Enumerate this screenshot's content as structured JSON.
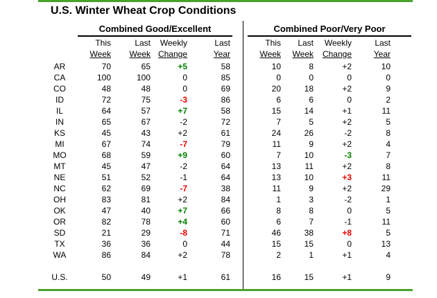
{
  "title": "U.S. Winter Wheat Crop Conditions",
  "colors": {
    "accent_bar_green": "#4aa02c",
    "positive_change_green": "#008000",
    "negative_change_red": "#f00000",
    "divider_black": "#000000"
  },
  "table": {
    "group_headers": {
      "good_excellent": "Combined Good/Excellent",
      "poor_very_poor": "Combined Poor/Very Poor"
    },
    "column_headers_line1": [
      "This",
      "Last",
      "Weekly",
      "Last",
      "This",
      "Last",
      "Weekly",
      "Last"
    ],
    "column_headers_line2": [
      "Week",
      "Week",
      "Change",
      "Year",
      "Week",
      "Week",
      "Change",
      "Year"
    ],
    "rows": [
      {
        "state": "AR",
        "cells": [
          "70",
          "65",
          "+5",
          "58",
          "10",
          "8",
          "+2",
          "10"
        ],
        "chg_colors": [
          "green",
          ""
        ]
      },
      {
        "state": "CA",
        "cells": [
          "100",
          "100",
          "0",
          "85",
          "0",
          "0",
          "0",
          "0"
        ],
        "chg_colors": [
          "",
          ""
        ]
      },
      {
        "state": "CO",
        "cells": [
          "48",
          "48",
          "0",
          "69",
          "20",
          "18",
          "+2",
          "9"
        ],
        "chg_colors": [
          "",
          ""
        ]
      },
      {
        "state": "ID",
        "cells": [
          "72",
          "75",
          "-3",
          "86",
          "6",
          "6",
          "0",
          "2"
        ],
        "chg_colors": [
          "red",
          ""
        ]
      },
      {
        "state": "IL",
        "cells": [
          "64",
          "57",
          "+7",
          "58",
          "15",
          "14",
          "+1",
          "11"
        ],
        "chg_colors": [
          "green",
          ""
        ]
      },
      {
        "state": "IN",
        "cells": [
          "65",
          "67",
          "-2",
          "72",
          "7",
          "5",
          "+2",
          "5"
        ],
        "chg_colors": [
          "",
          ""
        ]
      },
      {
        "state": "KS",
        "cells": [
          "45",
          "43",
          "+2",
          "61",
          "24",
          "26",
          "-2",
          "8"
        ],
        "chg_colors": [
          "",
          ""
        ]
      },
      {
        "state": "MI",
        "cells": [
          "67",
          "74",
          "-7",
          "79",
          "11",
          "9",
          "+2",
          "4"
        ],
        "chg_colors": [
          "red",
          ""
        ]
      },
      {
        "state": "MO",
        "cells": [
          "68",
          "59",
          "+9",
          "60",
          "7",
          "10",
          "-3",
          "7"
        ],
        "chg_colors": [
          "green",
          "green"
        ]
      },
      {
        "state": "MT",
        "cells": [
          "45",
          "47",
          "-2",
          "64",
          "13",
          "11",
          "+2",
          "8"
        ],
        "chg_colors": [
          "",
          ""
        ]
      },
      {
        "state": "NE",
        "cells": [
          "51",
          "52",
          "-1",
          "64",
          "13",
          "10",
          "+3",
          "11"
        ],
        "chg_colors": [
          "",
          "red"
        ]
      },
      {
        "state": "NC",
        "cells": [
          "62",
          "69",
          "-7",
          "38",
          "11",
          "9",
          "+2",
          "29"
        ],
        "chg_colors": [
          "red",
          ""
        ]
      },
      {
        "state": "OH",
        "cells": [
          "83",
          "81",
          "+2",
          "84",
          "1",
          "3",
          "-2",
          "1"
        ],
        "chg_colors": [
          "",
          ""
        ]
      },
      {
        "state": "OK",
        "cells": [
          "47",
          "40",
          "+7",
          "66",
          "8",
          "8",
          "0",
          "5"
        ],
        "chg_colors": [
          "green",
          ""
        ]
      },
      {
        "state": "OR",
        "cells": [
          "82",
          "78",
          "+4",
          "60",
          "6",
          "7",
          "-1",
          "11"
        ],
        "chg_colors": [
          "green",
          ""
        ]
      },
      {
        "state": "SD",
        "cells": [
          "21",
          "29",
          "-8",
          "71",
          "46",
          "38",
          "+8",
          "5"
        ],
        "chg_colors": [
          "red",
          "red"
        ]
      },
      {
        "state": "TX",
        "cells": [
          "36",
          "36",
          "0",
          "44",
          "15",
          "15",
          "0",
          "13"
        ],
        "chg_colors": [
          "",
          ""
        ]
      },
      {
        "state": "WA",
        "cells": [
          "86",
          "84",
          "+2",
          "78",
          "2",
          "1",
          "+1",
          "4"
        ],
        "chg_colors": [
          "",
          ""
        ]
      }
    ],
    "total_row": {
      "state": "U.S.",
      "cells": [
        "50",
        "49",
        "+1",
        "61",
        "16",
        "15",
        "+1",
        "9"
      ],
      "chg_colors": [
        "",
        ""
      ]
    }
  }
}
